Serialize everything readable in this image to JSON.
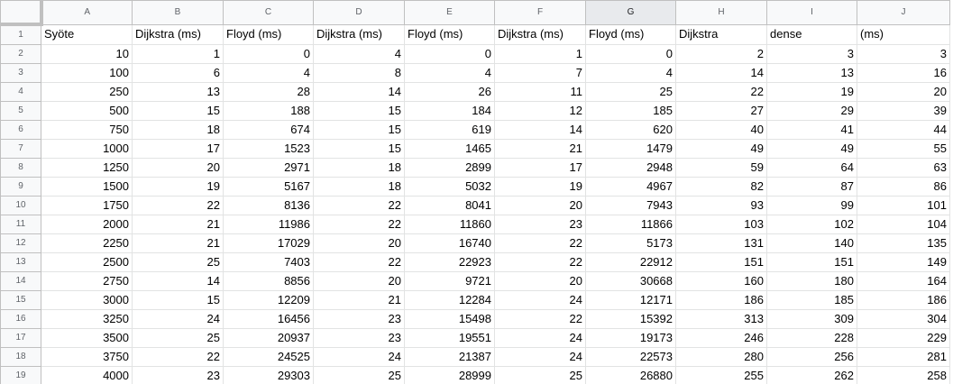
{
  "columns": [
    "A",
    "B",
    "C",
    "D",
    "E",
    "F",
    "G",
    "H",
    "I",
    "J"
  ],
  "selected_column": "G",
  "rows": [
    {
      "n": "1",
      "cells": [
        "Syöte",
        "Dijkstra (ms)",
        "Floyd (ms)",
        "Dijkstra (ms)",
        "Floyd (ms)",
        "Dijkstra (ms)",
        "Floyd (ms)",
        "Dijkstra",
        "dense",
        "(ms)"
      ]
    },
    {
      "n": "2",
      "cells": [
        "10",
        "1",
        "0",
        "4",
        "0",
        "1",
        "0",
        "2",
        "3",
        "3"
      ]
    },
    {
      "n": "3",
      "cells": [
        "100",
        "6",
        "4",
        "8",
        "4",
        "7",
        "4",
        "14",
        "13",
        "16"
      ]
    },
    {
      "n": "4",
      "cells": [
        "250",
        "13",
        "28",
        "14",
        "26",
        "11",
        "25",
        "22",
        "19",
        "20"
      ]
    },
    {
      "n": "5",
      "cells": [
        "500",
        "15",
        "188",
        "15",
        "184",
        "12",
        "185",
        "27",
        "29",
        "39"
      ]
    },
    {
      "n": "6",
      "cells": [
        "750",
        "18",
        "674",
        "15",
        "619",
        "14",
        "620",
        "40",
        "41",
        "44"
      ]
    },
    {
      "n": "7",
      "cells": [
        "1000",
        "17",
        "1523",
        "15",
        "1465",
        "21",
        "1479",
        "49",
        "49",
        "55"
      ]
    },
    {
      "n": "8",
      "cells": [
        "1250",
        "20",
        "2971",
        "18",
        "2899",
        "17",
        "2948",
        "59",
        "64",
        "63"
      ]
    },
    {
      "n": "9",
      "cells": [
        "1500",
        "19",
        "5167",
        "18",
        "5032",
        "19",
        "4967",
        "82",
        "87",
        "86"
      ]
    },
    {
      "n": "10",
      "cells": [
        "1750",
        "22",
        "8136",
        "22",
        "8041",
        "20",
        "7943",
        "93",
        "99",
        "101"
      ]
    },
    {
      "n": "11",
      "cells": [
        "2000",
        "21",
        "11986",
        "22",
        "11860",
        "23",
        "11866",
        "103",
        "102",
        "104"
      ]
    },
    {
      "n": "12",
      "cells": [
        "2250",
        "21",
        "17029",
        "20",
        "16740",
        "22",
        "5173",
        "131",
        "140",
        "135"
      ]
    },
    {
      "n": "13",
      "cells": [
        "2500",
        "25",
        "7403",
        "22",
        "22923",
        "22",
        "22912",
        "151",
        "151",
        "149"
      ]
    },
    {
      "n": "14",
      "cells": [
        "2750",
        "14",
        "8856",
        "20",
        "9721",
        "20",
        "30668",
        "160",
        "180",
        "164"
      ]
    },
    {
      "n": "15",
      "cells": [
        "3000",
        "15",
        "12209",
        "21",
        "12284",
        "24",
        "12171",
        "186",
        "185",
        "186"
      ]
    },
    {
      "n": "16",
      "cells": [
        "3250",
        "24",
        "16456",
        "23",
        "15498",
        "22",
        "15392",
        "313",
        "309",
        "304"
      ]
    },
    {
      "n": "17",
      "cells": [
        "3500",
        "25",
        "20937",
        "23",
        "19551",
        "24",
        "19173",
        "246",
        "228",
        "229"
      ]
    },
    {
      "n": "18",
      "cells": [
        "3750",
        "22",
        "24525",
        "24",
        "21387",
        "24",
        "22573",
        "280",
        "256",
        "281"
      ]
    },
    {
      "n": "19",
      "cells": [
        "4000",
        "23",
        "29303",
        "25",
        "28999",
        "25",
        "26880",
        "255",
        "262",
        "258"
      ]
    }
  ]
}
